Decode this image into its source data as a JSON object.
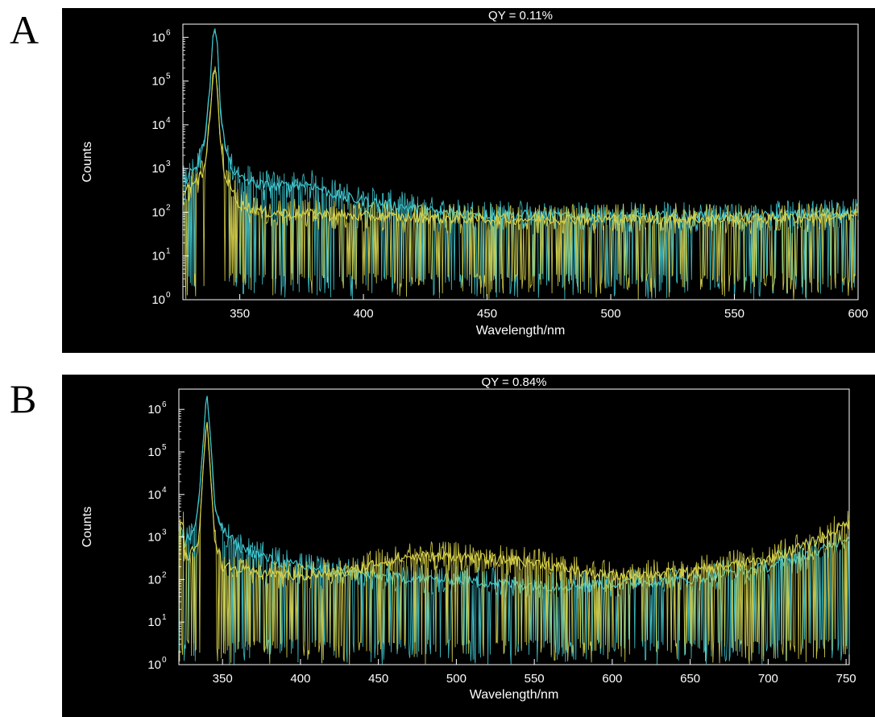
{
  "panels": {
    "a_label": "A",
    "b_label": "B"
  },
  "colors": {
    "background": "#000000",
    "axis": "#ffffff",
    "series_cyan": "#3fc6cf",
    "series_yellow": "#d8d24a"
  },
  "chart_data": [
    {
      "type": "line",
      "title": "QY = 0.11%",
      "xlabel": "Wavelength/nm",
      "ylabel": "Counts",
      "yscale": "log",
      "xlim": [
        327,
        600
      ],
      "ylim": [
        1,
        2000000
      ],
      "xticks": [
        350,
        400,
        450,
        500,
        550,
        600
      ],
      "yticks": [
        {
          "base": "10",
          "exp": "0"
        },
        {
          "base": "10",
          "exp": "1"
        },
        {
          "base": "10",
          "exp": "2"
        },
        {
          "base": "10",
          "exp": "3"
        },
        {
          "base": "10",
          "exp": "4"
        },
        {
          "base": "10",
          "exp": "5"
        },
        {
          "base": "10",
          "exp": "6"
        }
      ],
      "grid": false,
      "series": [
        {
          "color": "#3fc6cf",
          "x": [
            327,
            330,
            333,
            336,
            338,
            339,
            340,
            341,
            342,
            344,
            347,
            350,
            355,
            360,
            370,
            378,
            385,
            395,
            410,
            430,
            450,
            480,
            500,
            530,
            560,
            580,
            600
          ],
          "y": [
            500,
            800,
            1200,
            5000,
            80000,
            900000,
            1600000,
            600000,
            30000,
            3000,
            1000,
            600,
            500,
            400,
            400,
            450,
            300,
            200,
            150,
            100,
            90,
            80,
            80,
            80,
            80,
            90,
            100
          ]
        },
        {
          "color": "#d8d24a",
          "x": [
            327,
            330,
            333,
            336,
            338,
            339,
            340,
            341,
            342,
            344,
            347,
            350,
            360,
            400,
            450,
            500,
            550,
            600
          ],
          "y": [
            300,
            400,
            500,
            1000,
            20000,
            100000,
            200000,
            60000,
            5000,
            700,
            300,
            150,
            100,
            80,
            70,
            70,
            70,
            80
          ]
        }
      ]
    },
    {
      "type": "line",
      "title": "QY = 0.84%",
      "xlabel": "Wavelength/nm",
      "ylabel": "Counts",
      "yscale": "log",
      "xlim": [
        322,
        752
      ],
      "ylim": [
        1,
        3000000
      ],
      "xticks": [
        350,
        400,
        450,
        500,
        550,
        600,
        650,
        700,
        750
      ],
      "yticks": [
        {
          "base": "10",
          "exp": "0"
        },
        {
          "base": "10",
          "exp": "1"
        },
        {
          "base": "10",
          "exp": "2"
        },
        {
          "base": "10",
          "exp": "3"
        },
        {
          "base": "10",
          "exp": "4"
        },
        {
          "base": "10",
          "exp": "5"
        },
        {
          "base": "10",
          "exp": "6"
        }
      ],
      "grid": false,
      "series": [
        {
          "color": "#3fc6cf",
          "x": [
            325,
            328,
            332,
            335,
            338,
            340,
            342,
            345,
            350,
            360,
            380,
            400,
            430,
            450,
            480,
            500,
            530,
            560,
            600,
            650,
            700,
            730,
            750
          ],
          "y": [
            500,
            1000,
            1500,
            8000,
            300000,
            2500000,
            300000,
            5000,
            1500,
            600,
            300,
            200,
            150,
            120,
            100,
            100,
            80,
            70,
            80,
            100,
            200,
            400,
            1000
          ]
        },
        {
          "color": "#d8d24a",
          "x": [
            325,
            330,
            335,
            338,
            340,
            342,
            345,
            350,
            370,
            400,
            430,
            450,
            470,
            500,
            520,
            540,
            560,
            580,
            600,
            650,
            700,
            730,
            750
          ],
          "y": [
            300,
            400,
            1000,
            80000,
            500000,
            50000,
            1000,
            200,
            150,
            120,
            150,
            250,
            350,
            350,
            300,
            280,
            220,
            150,
            120,
            150,
            300,
            800,
            2000
          ]
        }
      ]
    }
  ]
}
